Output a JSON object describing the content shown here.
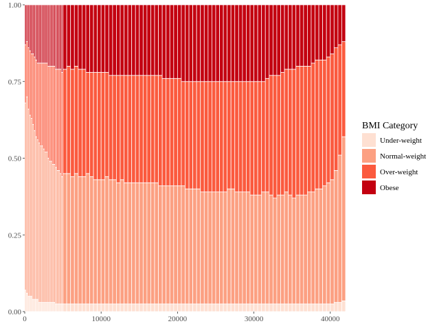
{
  "chart_data": {
    "type": "bar",
    "stacked": "fill",
    "xlim": [
      0,
      42000
    ],
    "ylim": [
      0,
      1
    ],
    "x_ticks": [
      0,
      10000,
      20000,
      30000,
      40000
    ],
    "x_tick_labels": [
      "0",
      "10000",
      "20000",
      "30000",
      "40000"
    ],
    "y_ticks": [
      0,
      0.25,
      0.5,
      0.75,
      1
    ],
    "y_tick_labels": [
      "0.00",
      "0.25",
      "0.50",
      "0.75",
      "1.00"
    ],
    "grid": false,
    "legend_title": "BMI Category",
    "legend_position": "right",
    "series": [
      {
        "name": "Under-weight",
        "color": "#FEE0D2"
      },
      {
        "name": "Normal-weight",
        "color": "#FCA082"
      },
      {
        "name": "Over-weight",
        "color": "#FB5A3E"
      },
      {
        "name": "Obese",
        "color": "#C30010"
      }
    ],
    "bars": {
      "x": [
        100,
        300,
        500,
        700,
        900,
        1100,
        1300,
        1500,
        1700,
        1900,
        2100,
        2300,
        2500,
        2700,
        2900,
        3100,
        3300,
        3500,
        3700,
        3900,
        4100,
        4300,
        4500,
        4700,
        4900,
        5250,
        5750,
        6250,
        6750,
        7250,
        7750,
        8250,
        8750,
        9250,
        9750,
        10250,
        10750,
        11250,
        11750,
        12250,
        12750,
        13250,
        13750,
        14250,
        14750,
        15250,
        15750,
        16250,
        16750,
        17250,
        17750,
        18250,
        18750,
        19250,
        19750,
        20250,
        20750,
        21250,
        21750,
        22250,
        22750,
        23250,
        23750,
        24250,
        24750,
        25250,
        25750,
        26250,
        26750,
        27250,
        27750,
        28250,
        28750,
        29250,
        29750,
        30250,
        30750,
        31250,
        31750,
        32250,
        32750,
        33250,
        33750,
        34250,
        34750,
        35250,
        35750,
        36250,
        36750,
        37250,
        37750,
        38250,
        38750,
        39250,
        39750,
        40250,
        40750,
        41250,
        41750
      ],
      "under_weight": [
        0.07,
        0.06,
        0.05,
        0.05,
        0.05,
        0.04,
        0.04,
        0.04,
        0.04,
        0.03,
        0.03,
        0.03,
        0.03,
        0.03,
        0.03,
        0.03,
        0.03,
        0.03,
        0.03,
        0.03,
        0.025,
        0.025,
        0.025,
        0.025,
        0.025,
        0.025,
        0.025,
        0.025,
        0.025,
        0.025,
        0.025,
        0.025,
        0.025,
        0.025,
        0.025,
        0.025,
        0.025,
        0.025,
        0.025,
        0.025,
        0.025,
        0.025,
        0.025,
        0.025,
        0.025,
        0.025,
        0.025,
        0.025,
        0.025,
        0.025,
        0.025,
        0.025,
        0.025,
        0.025,
        0.025,
        0.025,
        0.025,
        0.025,
        0.025,
        0.025,
        0.025,
        0.025,
        0.025,
        0.025,
        0.025,
        0.025,
        0.025,
        0.025,
        0.025,
        0.025,
        0.025,
        0.025,
        0.025,
        0.025,
        0.025,
        0.025,
        0.025,
        0.025,
        0.025,
        0.025,
        0.025,
        0.025,
        0.025,
        0.025,
        0.025,
        0.025,
        0.025,
        0.025,
        0.025,
        0.025,
        0.025,
        0.025,
        0.025,
        0.025,
        0.025,
        0.025,
        0.03,
        0.03,
        0.035
      ],
      "cum_normal": [
        0.68,
        0.7,
        0.66,
        0.64,
        0.63,
        0.61,
        0.59,
        0.57,
        0.56,
        0.55,
        0.54,
        0.54,
        0.53,
        0.52,
        0.52,
        0.5,
        0.49,
        0.49,
        0.48,
        0.48,
        0.47,
        0.46,
        0.46,
        0.45,
        0.44,
        0.45,
        0.45,
        0.44,
        0.45,
        0.44,
        0.44,
        0.45,
        0.44,
        0.43,
        0.43,
        0.43,
        0.44,
        0.43,
        0.43,
        0.42,
        0.43,
        0.42,
        0.42,
        0.42,
        0.42,
        0.42,
        0.42,
        0.42,
        0.42,
        0.42,
        0.41,
        0.41,
        0.41,
        0.41,
        0.41,
        0.41,
        0.41,
        0.4,
        0.4,
        0.4,
        0.4,
        0.39,
        0.39,
        0.39,
        0.39,
        0.39,
        0.39,
        0.39,
        0.4,
        0.4,
        0.39,
        0.39,
        0.39,
        0.39,
        0.38,
        0.38,
        0.38,
        0.39,
        0.39,
        0.38,
        0.37,
        0.38,
        0.38,
        0.39,
        0.38,
        0.37,
        0.38,
        0.38,
        0.38,
        0.39,
        0.39,
        0.4,
        0.4,
        0.41,
        0.42,
        0.43,
        0.46,
        0.51,
        0.57
      ],
      "cum_overweight": [
        0.87,
        0.88,
        0.86,
        0.85,
        0.84,
        0.84,
        0.83,
        0.82,
        0.81,
        0.81,
        0.81,
        0.81,
        0.81,
        0.81,
        0.81,
        0.8,
        0.8,
        0.8,
        0.8,
        0.8,
        0.79,
        0.79,
        0.79,
        0.79,
        0.78,
        0.79,
        0.8,
        0.79,
        0.8,
        0.79,
        0.79,
        0.78,
        0.78,
        0.78,
        0.78,
        0.78,
        0.78,
        0.77,
        0.77,
        0.77,
        0.77,
        0.77,
        0.77,
        0.77,
        0.77,
        0.77,
        0.77,
        0.77,
        0.77,
        0.77,
        0.77,
        0.76,
        0.76,
        0.76,
        0.76,
        0.76,
        0.75,
        0.75,
        0.75,
        0.75,
        0.75,
        0.75,
        0.75,
        0.75,
        0.75,
        0.75,
        0.75,
        0.75,
        0.75,
        0.75,
        0.75,
        0.75,
        0.75,
        0.75,
        0.75,
        0.75,
        0.75,
        0.75,
        0.76,
        0.77,
        0.77,
        0.77,
        0.78,
        0.79,
        0.79,
        0.79,
        0.8,
        0.8,
        0.8,
        0.8,
        0.81,
        0.82,
        0.82,
        0.82,
        0.83,
        0.84,
        0.86,
        0.87,
        0.88
      ]
    }
  }
}
